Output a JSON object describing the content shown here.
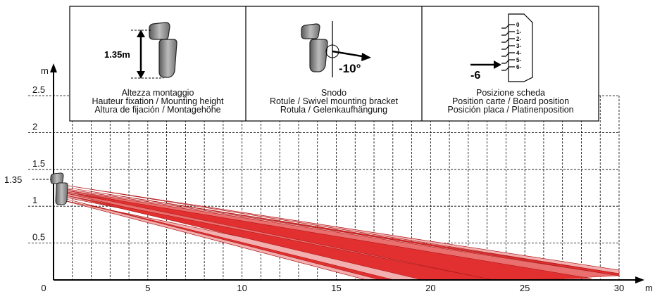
{
  "panels": [
    {
      "value_label": "1.35m",
      "lines": [
        "Altezza montaggio",
        "Hauteur fixation / Mounting height",
        "Altura de fijación / Montagehöhe"
      ]
    },
    {
      "value_label": "-10°",
      "lines": [
        "Snodo",
        "Rotule / Swivel mounting bracket",
        "Rotula / Gelenkaufhängung"
      ]
    },
    {
      "value_label": "-6",
      "card_positions": [
        "0",
        "1-",
        "2-",
        "3-",
        "4-",
        "5-",
        "6-"
      ],
      "lines": [
        "Posizione scheda",
        "Position carte / Board position",
        "Posición placa / Platinenposition"
      ]
    }
  ],
  "axes": {
    "x_unit": "m",
    "y_unit": "m",
    "x_ticks": [
      "0",
      "5",
      "10",
      "15",
      "20",
      "25",
      "30"
    ],
    "y_ticks": [
      "0.5",
      "1",
      "1.5",
      "2",
      "2.5"
    ],
    "mount_height_label": "1.35"
  },
  "colors": {
    "beam_light": "#f3b0b0",
    "beam_mid": "#ea7070",
    "beam_dark": "#e23030",
    "beam_edge": "#b01818",
    "grid": "#000000"
  }
}
